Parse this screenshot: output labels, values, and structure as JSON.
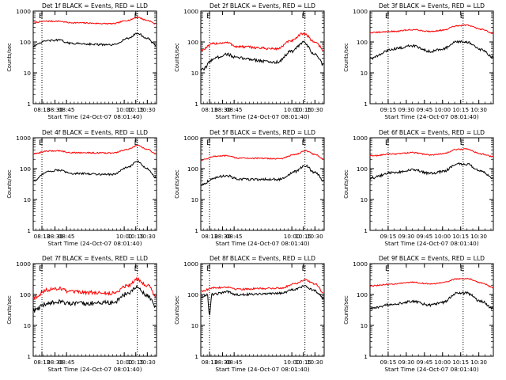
{
  "chart_data": [
    {
      "type": "line",
      "title": "Det 1f BLACK = Events, RED = LLD",
      "xlabel": "Start Time (24-Oct-07 08:01:40)",
      "ylabel": "Counts/sec",
      "yscale": "log",
      "ylim": [
        1,
        1000
      ],
      "xlim": [
        "08:01:40",
        "10:42:00"
      ],
      "x_tick_labels": [
        "08:13",
        "08:30",
        "08:45",
        "10:00",
        "10:15",
        "10:30"
      ],
      "y_tick_labels": [
        "1",
        "10",
        "100",
        "1000"
      ],
      "markers": [
        {
          "label": "E",
          "time": "08:13"
        },
        {
          "label": "E",
          "time": "10:17"
        }
      ],
      "series": [
        {
          "color": "#ff0000",
          "noise": 0.02,
          "points": [
            [
              "08:01:40",
              430
            ],
            [
              "08:20",
              470
            ],
            [
              "08:35",
              470
            ],
            [
              "08:50",
              420
            ],
            [
              "09:45",
              390
            ],
            [
              "10:05",
              500
            ],
            [
              "10:17",
              630
            ],
            [
              "10:30",
              500
            ],
            [
              "10:42",
              380
            ]
          ]
        },
        {
          "color": "#000000",
          "noise": 0.03,
          "points": [
            [
              "08:01:40",
              75
            ],
            [
              "08:20",
              110
            ],
            [
              "08:35",
              115
            ],
            [
              "08:50",
              90
            ],
            [
              "09:45",
              80
            ],
            [
              "10:05",
              130
            ],
            [
              "10:17",
              190
            ],
            [
              "10:30",
              130
            ],
            [
              "10:42",
              75
            ]
          ]
        }
      ]
    },
    {
      "type": "line",
      "title": "Det 2f BLACK = Events, RED = LLD",
      "xlabel": "Start Time (24-Oct-07 08:01:40)",
      "ylabel": "Counts/sec",
      "yscale": "log",
      "ylim": [
        1,
        1000
      ],
      "xlim": [
        "08:01:40",
        "10:42:00"
      ],
      "x_tick_labels": [
        "08:13",
        "08:30",
        "08:45",
        "10:00",
        "10:15",
        "10:30"
      ],
      "y_tick_labels": [
        "1",
        "10",
        "100",
        "1000"
      ],
      "markers": [
        {
          "label": "E",
          "time": "08:13"
        },
        {
          "label": "E",
          "time": "10:17"
        }
      ],
      "series": [
        {
          "color": "#ff0000",
          "noise": 0.04,
          "points": [
            [
              "08:01:40",
              55
            ],
            [
              "08:20",
              90
            ],
            [
              "08:35",
              95
            ],
            [
              "08:50",
              70
            ],
            [
              "09:40",
              60
            ],
            [
              "10:00",
              110
            ],
            [
              "10:15",
              190
            ],
            [
              "10:30",
              100
            ],
            [
              "10:42",
              55
            ]
          ]
        },
        {
          "color": "#000000",
          "noise": 0.05,
          "points": [
            [
              "08:01:40",
              12
            ],
            [
              "08:20",
              30
            ],
            [
              "08:35",
              40
            ],
            [
              "08:50",
              30
            ],
            [
              "09:40",
              22
            ],
            [
              "10:00",
              50
            ],
            [
              "10:15",
              95
            ],
            [
              "10:30",
              40
            ],
            [
              "10:42",
              18
            ]
          ]
        }
      ]
    },
    {
      "type": "line",
      "title": "Det 3f BLACK = Events, RED = LLD",
      "xlabel": "Start Time (24-Oct-07 08:01:40)",
      "ylabel": "Counts/sec",
      "yscale": "log",
      "ylim": [
        1,
        1000
      ],
      "xlim": [
        "09:00",
        "10:42:00"
      ],
      "x_tick_labels": [
        "09:15",
        "09:30",
        "09:45",
        "10:00",
        "10:15",
        "10:30"
      ],
      "y_tick_labels": [
        "1",
        "10",
        "100",
        "1000"
      ],
      "markers": [
        {
          "label": "E",
          "time": "09:15"
        },
        {
          "label": "E",
          "time": "10:17"
        }
      ],
      "series": [
        {
          "color": "#ff0000",
          "noise": 0.02,
          "points": [
            [
              "09:00",
              200
            ],
            [
              "09:20",
              220
            ],
            [
              "09:35",
              250
            ],
            [
              "09:50",
              220
            ],
            [
              "10:00",
              240
            ],
            [
              "10:12",
              330
            ],
            [
              "10:20",
              350
            ],
            [
              "10:32",
              260
            ],
            [
              "10:42",
              190
            ]
          ]
        },
        {
          "color": "#000000",
          "noise": 0.04,
          "points": [
            [
              "09:00",
              30
            ],
            [
              "09:20",
              60
            ],
            [
              "09:35",
              75
            ],
            [
              "09:50",
              50
            ],
            [
              "10:00",
              60
            ],
            [
              "10:12",
              100
            ],
            [
              "10:20",
              100
            ],
            [
              "10:32",
              55
            ],
            [
              "10:42",
              33
            ]
          ]
        }
      ]
    },
    {
      "type": "line",
      "title": "Det 4f BLACK = Events, RED = LLD",
      "xlabel": "Start Time (24-Oct-07 08:01:40)",
      "ylabel": "Counts/sec",
      "yscale": "log",
      "ylim": [
        1,
        1000
      ],
      "xlim": [
        "08:01:40",
        "10:42:00"
      ],
      "x_tick_labels": [
        "08:13",
        "08:30",
        "08:45",
        "10:00",
        "10:15",
        "10:30"
      ],
      "y_tick_labels": [
        "1",
        "10",
        "100",
        "1000"
      ],
      "markers": [
        {
          "label": "E",
          "time": "08:13"
        },
        {
          "label": "E",
          "time": "10:17"
        }
      ],
      "series": [
        {
          "color": "#ff0000",
          "noise": 0.02,
          "points": [
            [
              "08:01:40",
              300
            ],
            [
              "08:20",
              370
            ],
            [
              "08:35",
              380
            ],
            [
              "08:50",
              330
            ],
            [
              "09:45",
              320
            ],
            [
              "10:05",
              420
            ],
            [
              "10:17",
              560
            ],
            [
              "10:30",
              420
            ],
            [
              "10:42",
              300
            ]
          ]
        },
        {
          "color": "#000000",
          "noise": 0.03,
          "points": [
            [
              "08:01:40",
              40
            ],
            [
              "08:20",
              80
            ],
            [
              "08:35",
              90
            ],
            [
              "08:50",
              70
            ],
            [
              "09:45",
              65
            ],
            [
              "10:05",
              110
            ],
            [
              "10:17",
              170
            ],
            [
              "10:30",
              100
            ],
            [
              "10:42",
              50
            ]
          ]
        }
      ]
    },
    {
      "type": "line",
      "title": "Det 5f BLACK = Events, RED = LLD",
      "xlabel": "Start Time (24-Oct-07 08:01:40)",
      "ylabel": "Counts/sec",
      "yscale": "log",
      "ylim": [
        1,
        1000
      ],
      "xlim": [
        "08:01:40",
        "10:42:00"
      ],
      "x_tick_labels": [
        "08:13",
        "08:30",
        "08:45",
        "10:00",
        "10:15",
        "10:30"
      ],
      "y_tick_labels": [
        "1",
        "10",
        "100",
        "1000"
      ],
      "markers": [
        {
          "label": "E",
          "time": "08:13"
        },
        {
          "label": "E",
          "time": "10:17"
        }
      ],
      "series": [
        {
          "color": "#ff0000",
          "noise": 0.02,
          "points": [
            [
              "08:01:40",
              190
            ],
            [
              "08:20",
              250
            ],
            [
              "08:35",
              260
            ],
            [
              "08:50",
              220
            ],
            [
              "09:45",
              210
            ],
            [
              "10:05",
              290
            ],
            [
              "10:17",
              380
            ],
            [
              "10:30",
              290
            ],
            [
              "10:42",
              200
            ]
          ]
        },
        {
          "color": "#000000",
          "noise": 0.04,
          "points": [
            [
              "08:01:40",
              30
            ],
            [
              "08:20",
              50
            ],
            [
              "08:35",
              60
            ],
            [
              "08:50",
              45
            ],
            [
              "09:45",
              45
            ],
            [
              "10:05",
              80
            ],
            [
              "10:17",
              125
            ],
            [
              "10:30",
              75
            ],
            [
              "10:42",
              40
            ]
          ]
        }
      ]
    },
    {
      "type": "line",
      "title": "Det 6f BLACK = Events, RED = LLD",
      "xlabel": "Start Time (24-Oct-07 08:01:40)",
      "ylabel": "Counts/sec",
      "yscale": "log",
      "ylim": [
        1,
        1000
      ],
      "xlim": [
        "09:00",
        "10:42:00"
      ],
      "x_tick_labels": [
        "09:15",
        "09:30",
        "09:45",
        "10:00",
        "10:15",
        "10:30"
      ],
      "y_tick_labels": [
        "1",
        "10",
        "100",
        "1000"
      ],
      "markers": [
        {
          "label": "E",
          "time": "09:15"
        },
        {
          "label": "E",
          "time": "10:17"
        }
      ],
      "series": [
        {
          "color": "#ff0000",
          "noise": 0.02,
          "points": [
            [
              "09:00",
              260
            ],
            [
              "09:20",
              300
            ],
            [
              "09:35",
              330
            ],
            [
              "09:50",
              280
            ],
            [
              "10:00",
              300
            ],
            [
              "10:12",
              420
            ],
            [
              "10:20",
              430
            ],
            [
              "10:32",
              300
            ],
            [
              "10:42",
              240
            ]
          ]
        },
        {
          "color": "#000000",
          "noise": 0.04,
          "points": [
            [
              "09:00",
              50
            ],
            [
              "09:20",
              75
            ],
            [
              "09:35",
              90
            ],
            [
              "09:50",
              70
            ],
            [
              "10:00",
              80
            ],
            [
              "10:12",
              140
            ],
            [
              "10:20",
              140
            ],
            [
              "10:32",
              80
            ],
            [
              "10:42",
              50
            ]
          ]
        }
      ]
    },
    {
      "type": "line",
      "title": "Det 7f BLACK = Events, RED = LLD",
      "xlabel": "Start Time (24-Oct-07 08:01:40)",
      "ylabel": "Counts/sec",
      "yscale": "log",
      "ylim": [
        1,
        1000
      ],
      "xlim": [
        "08:01:40",
        "10:42:00"
      ],
      "x_tick_labels": [
        "08:13",
        "08:30",
        "08:45",
        "10:00",
        "10:15",
        "10:30"
      ],
      "y_tick_labels": [
        "1",
        "10",
        "100",
        "1000"
      ],
      "markers": [
        {
          "label": "E",
          "time": "08:13"
        },
        {
          "label": "E",
          "time": "10:17"
        }
      ],
      "series": [
        {
          "color": "#ff0000",
          "noise": 0.06,
          "points": [
            [
              "08:01:40",
              80
            ],
            [
              "08:20",
              140
            ],
            [
              "08:35",
              160
            ],
            [
              "08:50",
              120
            ],
            [
              "09:45",
              110
            ],
            [
              "10:05",
              200
            ],
            [
              "10:17",
              310
            ],
            [
              "10:30",
              200
            ],
            [
              "10:42",
              90
            ]
          ]
        },
        {
          "color": "#000000",
          "noise": 0.07,
          "points": [
            [
              "08:01:40",
              30
            ],
            [
              "08:20",
              50
            ],
            [
              "08:35",
              60
            ],
            [
              "08:50",
              50
            ],
            [
              "09:45",
              55
            ],
            [
              "10:05",
              110
            ],
            [
              "10:17",
              170
            ],
            [
              "10:30",
              90
            ],
            [
              "10:42",
              40
            ]
          ]
        }
      ]
    },
    {
      "type": "line",
      "title": "Det 8f BLACK = Events, RED = LLD",
      "xlabel": "Start Time (24-Oct-07 08:01:40)",
      "ylabel": "Counts/sec",
      "yscale": "log",
      "ylim": [
        1,
        1000
      ],
      "xlim": [
        "08:01:40",
        "10:42:00"
      ],
      "x_tick_labels": [
        "08:13",
        "08:30",
        "08:45",
        "10:00",
        "10:15",
        "10:30"
      ],
      "y_tick_labels": [
        "1",
        "10",
        "100",
        "1000"
      ],
      "markers": [
        {
          "label": "E",
          "time": "08:13"
        },
        {
          "label": "E",
          "time": "10:17"
        }
      ],
      "series": [
        {
          "color": "#ff0000",
          "noise": 0.03,
          "points": [
            [
              "08:01:40",
              130
            ],
            [
              "08:20",
              165
            ],
            [
              "08:35",
              175
            ],
            [
              "08:50",
              150
            ],
            [
              "09:45",
              160
            ],
            [
              "10:05",
              230
            ],
            [
              "10:17",
              300
            ],
            [
              "10:30",
              220
            ],
            [
              "10:42",
              110
            ]
          ]
        },
        {
          "color": "#000000",
          "noise": 0.04,
          "points": [
            [
              "08:01:40",
              80
            ],
            [
              "08:10",
              100
            ],
            [
              "08:13",
              22
            ],
            [
              "08:16",
              100
            ],
            [
              "08:35",
              120
            ],
            [
              "08:50",
              100
            ],
            [
              "09:45",
              110
            ],
            [
              "10:05",
              150
            ],
            [
              "10:17",
              190
            ],
            [
              "10:30",
              130
            ],
            [
              "10:42",
              75
            ]
          ]
        }
      ]
    },
    {
      "type": "line",
      "title": "Det 9f BLACK = Events, RED = LLD",
      "xlabel": "Start Time (24-Oct-07 08:01:40)",
      "ylabel": "Counts/sec",
      "yscale": "log",
      "ylim": [
        1,
        1000
      ],
      "xlim": [
        "09:00",
        "10:42:00"
      ],
      "x_tick_labels": [
        "09:15",
        "09:30",
        "09:45",
        "10:00",
        "10:15",
        "10:30"
      ],
      "y_tick_labels": [
        "1",
        "10",
        "100",
        "1000"
      ],
      "markers": [
        {
          "label": "E",
          "time": "09:15"
        },
        {
          "label": "E",
          "time": "10:17"
        }
      ],
      "series": [
        {
          "color": "#ff0000",
          "noise": 0.02,
          "points": [
            [
              "09:00",
              190
            ],
            [
              "09:20",
              220
            ],
            [
              "09:35",
              250
            ],
            [
              "09:50",
              220
            ],
            [
              "10:00",
              240
            ],
            [
              "10:12",
              320
            ],
            [
              "10:20",
              330
            ],
            [
              "10:32",
              240
            ],
            [
              "10:42",
              170
            ]
          ]
        },
        {
          "color": "#000000",
          "noise": 0.04,
          "points": [
            [
              "09:00",
              35
            ],
            [
              "09:20",
              50
            ],
            [
              "09:35",
              60
            ],
            [
              "09:50",
              45
            ],
            [
              "10:00",
              55
            ],
            [
              "10:12",
              110
            ],
            [
              "10:20",
              110
            ],
            [
              "10:32",
              60
            ],
            [
              "10:42",
              35
            ]
          ]
        }
      ]
    }
  ]
}
